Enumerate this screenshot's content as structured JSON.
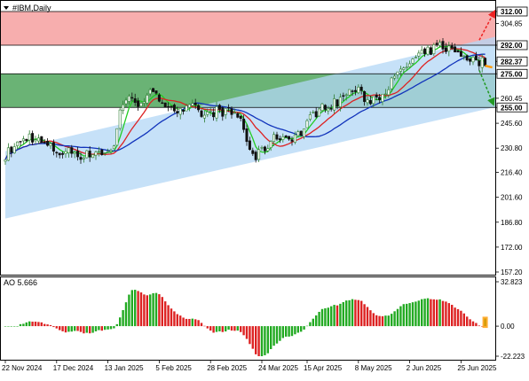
{
  "header": {
    "symbol_label": "#IBM,Daily",
    "menu_icon": "triangle-down-icon"
  },
  "colors": {
    "resistance_zone": "#f6a5a5",
    "support_zone": "#5aab66",
    "channel": "#b3d7f5",
    "bull_candle": "#2e7d32",
    "bear_candle": "#111111",
    "ma_fast": "#22cc22",
    "ma_mid": "#dd2222",
    "ma_slow": "#1133bb",
    "ao_up": "#22aa22",
    "ao_down": "#dd2222",
    "arrow_up": "#ee2222",
    "arrow_down": "#229922",
    "forecast": "#ff9900"
  },
  "chart_data": [
    {
      "type": "candlestick",
      "title": "",
      "ylim": [
        157.2,
        312.0
      ],
      "y_ticks": [
        "312.00",
        "304.85",
        "292.00",
        "282.37",
        "275.00",
        "260.45",
        "255.00",
        "245.60",
        "230.80",
        "216.40",
        "201.60",
        "186.80",
        "172.00",
        "157.20"
      ],
      "price_marks": [
        {
          "label": "312.00",
          "value": 312.0,
          "kind": "level"
        },
        {
          "label": "292.00",
          "value": 292.0,
          "kind": "level"
        },
        {
          "label": "282.37",
          "value": 282.37,
          "kind": "current"
        },
        {
          "label": "275.00",
          "value": 275.0,
          "kind": "level"
        },
        {
          "label": "255.00",
          "value": 255.0,
          "kind": "level"
        }
      ],
      "zones": [
        {
          "name": "resistance",
          "from": 292.0,
          "to": 312.0
        },
        {
          "name": "support",
          "from": 255.0,
          "to": 275.0
        }
      ],
      "channel": {
        "start": [
          0,
          229,
          189
        ],
        "end": [
          179,
          304,
          262
        ]
      },
      "x_labels": [
        {
          "label": "22 Nov 2024",
          "index": 0
        },
        {
          "label": "17 Dec 2024",
          "index": 17
        },
        {
          "label": "13 Jan 2025",
          "index": 34
        },
        {
          "label": "5 Feb 2025",
          "index": 51
        },
        {
          "label": "28 Feb 2025",
          "index": 68
        },
        {
          "label": "24 Mar 2025",
          "index": 85
        },
        {
          "label": "15 Apr 2025",
          "index": 100
        },
        {
          "label": "8 May 2025",
          "index": 117
        },
        {
          "label": "2 Jun 2025",
          "index": 134
        },
        {
          "label": "25 Jun 2025",
          "index": 151
        }
      ],
      "anchors": [
        [
          0,
          227
        ],
        [
          4,
          233
        ],
        [
          8,
          238
        ],
        [
          10,
          236
        ],
        [
          14,
          232
        ],
        [
          18,
          228
        ],
        [
          22,
          229
        ],
        [
          26,
          226
        ],
        [
          30,
          229
        ],
        [
          34,
          228
        ],
        [
          36,
          231
        ],
        [
          38,
          255
        ],
        [
          40,
          260
        ],
        [
          44,
          258
        ],
        [
          48,
          263
        ],
        [
          50,
          261
        ],
        [
          54,
          257
        ],
        [
          58,
          252
        ],
        [
          62,
          255
        ],
        [
          66,
          250
        ],
        [
          70,
          253
        ],
        [
          74,
          252
        ],
        [
          78,
          249
        ],
        [
          80,
          234
        ],
        [
          83,
          225
        ],
        [
          86,
          231
        ],
        [
          90,
          238
        ],
        [
          94,
          237
        ],
        [
          98,
          240
        ],
        [
          102,
          251
        ],
        [
          106,
          256
        ],
        [
          110,
          258
        ],
        [
          112,
          262
        ],
        [
          116,
          266
        ],
        [
          120,
          259
        ],
        [
          124,
          262
        ],
        [
          128,
          270
        ],
        [
          132,
          278
        ],
        [
          136,
          284
        ],
        [
          140,
          288
        ],
        [
          144,
          292
        ],
        [
          148,
          289
        ],
        [
          152,
          286
        ],
        [
          156,
          282
        ]
      ],
      "series": [
        {
          "name": "",
          "role": "ma_fast",
          "period": 5
        },
        {
          "name": "",
          "role": "ma_mid",
          "period": 12
        },
        {
          "name": "",
          "role": "ma_slow",
          "period": 26
        }
      ]
    },
    {
      "type": "histogram",
      "title": "AO 5.666",
      "ylim": [
        -22.223,
        32.823
      ],
      "y_ticks": [
        "32.823",
        "0.00",
        "-22.223"
      ],
      "value": 5.666
    }
  ]
}
